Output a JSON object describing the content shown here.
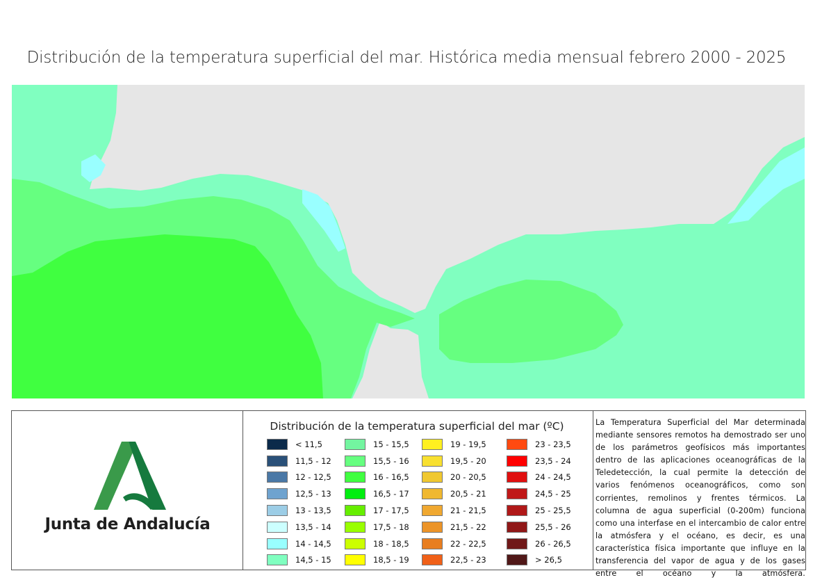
{
  "title": "Distribución de la temperatura superficial del mar. Histórica media mensual febrero 2000 - 2025",
  "map": {
    "land_color": "#e6e6e6",
    "zones": [
      {
        "range": "14,5 - 15",
        "color": "#80ffc0"
      },
      {
        "range": "14 - 14,5",
        "color": "#99ffff"
      },
      {
        "range": "15,5 - 16",
        "color": "#66ff80"
      },
      {
        "range": "16 - 16,5",
        "color": "#40ff40"
      }
    ]
  },
  "logo": {
    "text": "Junta de Andalucía",
    "colors": {
      "dark": "#167a3e",
      "light": "#3a9a4a"
    }
  },
  "legend": {
    "title": "Distribución de la temperatura superficial del mar (ºC)",
    "items": [
      {
        "label": "< 11,5",
        "color": "#0b2a4a"
      },
      {
        "label": "11,5 - 12",
        "color": "#2a5078"
      },
      {
        "label": "12 - 12,5",
        "color": "#4a78a6"
      },
      {
        "label": "12,5 - 13",
        "color": "#6fa3cf"
      },
      {
        "label": "13 - 13,5",
        "color": "#9ccde6"
      },
      {
        "label": "13,5 - 14",
        "color": "#ccffff"
      },
      {
        "label": "14 - 14,5",
        "color": "#99ffff"
      },
      {
        "label": "14,5 - 15",
        "color": "#80ffc0"
      },
      {
        "label": "15 - 15,5",
        "color": "#73f5a0"
      },
      {
        "label": "15,5 - 16",
        "color": "#66ff80"
      },
      {
        "label": "16 - 16,5",
        "color": "#40ff40"
      },
      {
        "label": "16,5 - 17",
        "color": "#00ee10"
      },
      {
        "label": "17 - 17,5",
        "color": "#66ee00"
      },
      {
        "label": "17,5 - 18",
        "color": "#99ff00"
      },
      {
        "label": "18 - 18,5",
        "color": "#ccff00"
      },
      {
        "label": "18,5 - 19",
        "color": "#ffff00"
      },
      {
        "label": "19 - 19,5",
        "color": "#fff020"
      },
      {
        "label": "19,5 - 20",
        "color": "#f8e030"
      },
      {
        "label": "20 - 20,5",
        "color": "#f0c830"
      },
      {
        "label": "20,5 - 21",
        "color": "#f0b830"
      },
      {
        "label": "21 - 21,5",
        "color": "#f0a830"
      },
      {
        "label": "21,5 - 22",
        "color": "#ec9428"
      },
      {
        "label": "22 - 22,5",
        "color": "#e87e20"
      },
      {
        "label": "22,5 - 23",
        "color": "#f06018"
      },
      {
        "label": "23 - 23,5",
        "color": "#ff4a10"
      },
      {
        "label": "23,5 - 24",
        "color": "#ff0000"
      },
      {
        "label": "24 - 24,5",
        "color": "#e01010"
      },
      {
        "label": "24,5 - 25",
        "color": "#c01818"
      },
      {
        "label": "25 - 25,5",
        "color": "#b01818"
      },
      {
        "label": "25,5 - 26",
        "color": "#901818"
      },
      {
        "label": "26 - 26,5",
        "color": "#701818"
      },
      {
        "label": "> 26,5",
        "color": "#501818"
      }
    ]
  },
  "description": "La Temperatura Superficial del Mar determinada mediante sensores remotos ha demostrado ser uno de los parámetros geofísicos más importantes dentro de las aplicaciones oceanográficas de la Teledetección, la cual permite la detección de varios fenómenos oceanográficos, como son corrientes, remolinos y frentes térmicos. La columna de agua superficial (0-200m) funciona como una interfase en el intercambio de calor entre la atmósfera y el océano, es decir, es una característica física importante que influye en la transferencia del vapor de agua y de los gases entre el océano y la atmósfera."
}
